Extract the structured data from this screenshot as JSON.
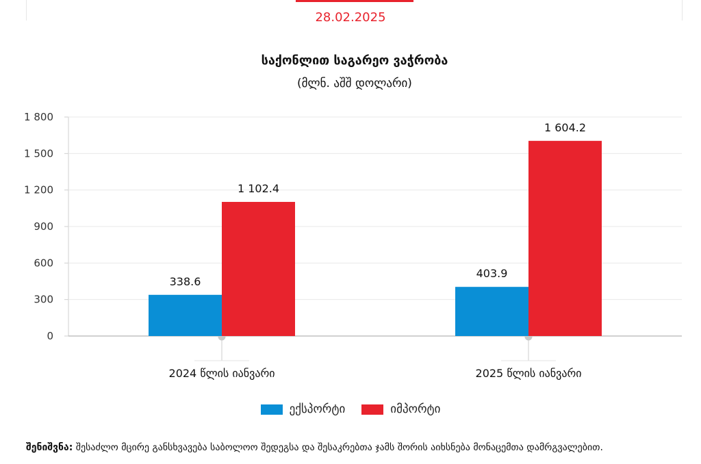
{
  "header": {
    "date": "28.02.2025"
  },
  "chart_data": {
    "type": "bar",
    "title": "საქონლით საგარეო ვაჭრობა",
    "subtitle": "(მლნ. აშშ დოლარი)",
    "categories": [
      "2024 წლის იანვარი",
      "2025 წლის იანვარი"
    ],
    "series": [
      {
        "name": "ექსპორტი",
        "values": [
          338.6,
          403.9
        ],
        "color": "#0a8fd6",
        "labels": [
          "338.6",
          "403.9"
        ]
      },
      {
        "name": "იმპორტი",
        "values": [
          1102.4,
          1604.2
        ],
        "color": "#e8232d",
        "labels": [
          "1 102.4",
          "1 604.2"
        ]
      }
    ],
    "ylim": [
      0,
      1800
    ],
    "yticks": [
      0,
      300,
      600,
      900,
      1200,
      1500,
      1800
    ],
    "ytick_labels": [
      "0",
      "300",
      "600",
      "900",
      "1 200",
      "1 500",
      "1 800"
    ],
    "grid": true,
    "legend": "bottom"
  },
  "note": {
    "label": "შენიშვნა:",
    "text": "შესაძლო მცირე განსხვავება საბოლოო შედეგსა და შესაკრებთა ჯამს შორის აიხსნება მონაცემთა დამრგვალებით."
  }
}
